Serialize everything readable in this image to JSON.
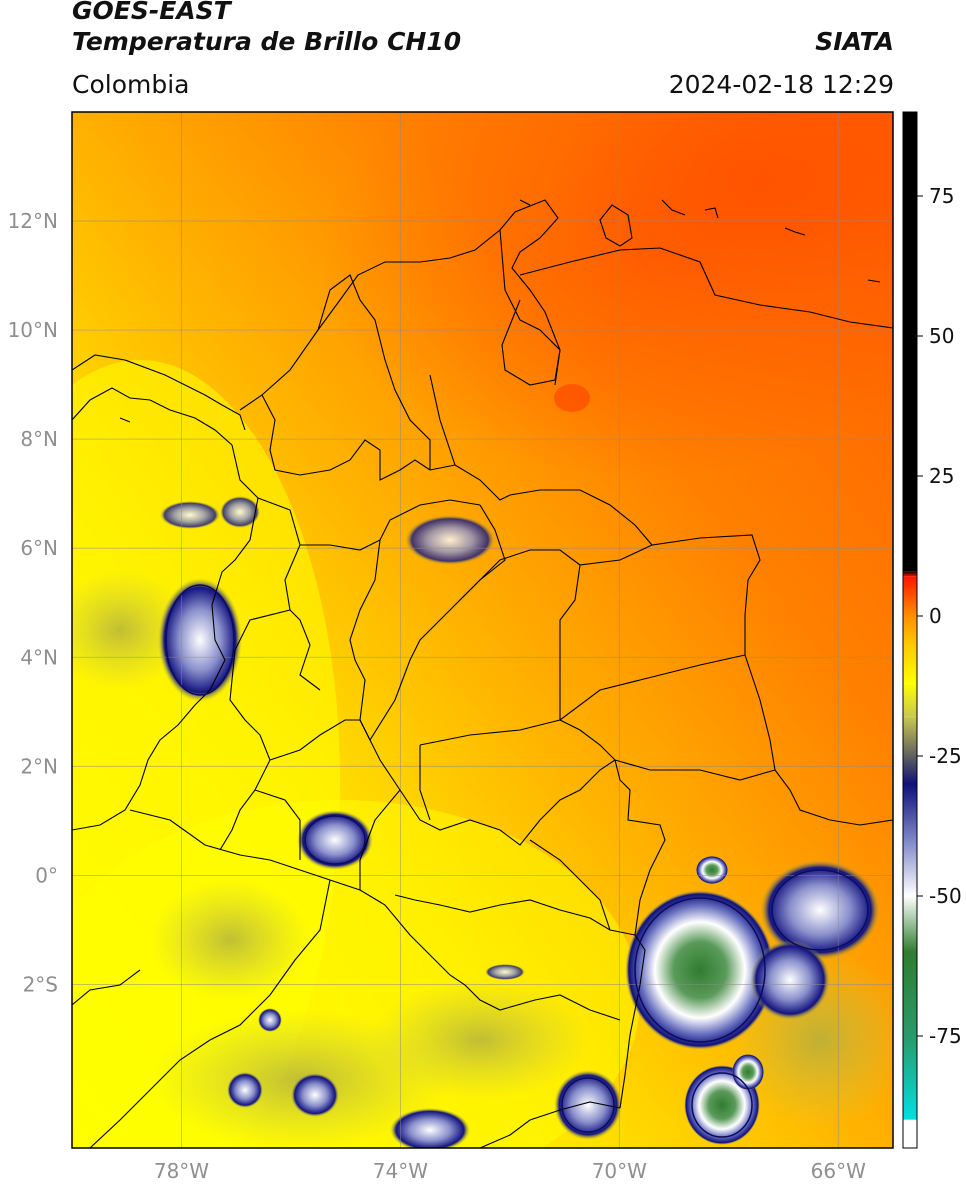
{
  "header": {
    "satellite": "GOES-EAST",
    "product": "Temperatura de Brillo CH10",
    "agency": "SIATA",
    "region": "Colombia",
    "timestamp": "2024-02-18 12:29"
  },
  "map": {
    "lon_range": [
      -80,
      -65
    ],
    "lat_range": [
      -5,
      14
    ],
    "lat_ticks": [
      {
        "value": 12,
        "label": "12°N"
      },
      {
        "value": 10,
        "label": "10°N"
      },
      {
        "value": 8,
        "label": "8°N"
      },
      {
        "value": 6,
        "label": "6°N"
      },
      {
        "value": 4,
        "label": "4°N"
      },
      {
        "value": 2,
        "label": "2°N"
      },
      {
        "value": 0,
        "label": "0°"
      },
      {
        "value": -2,
        "label": "2°S"
      }
    ],
    "lon_ticks": [
      {
        "value": -78,
        "label": "78°W"
      },
      {
        "value": -74,
        "label": "74°W"
      },
      {
        "value": -70,
        "label": "70°W"
      },
      {
        "value": -66,
        "label": "66°W"
      }
    ],
    "grid": true
  },
  "colorbar": {
    "range": [
      -95,
      90
    ],
    "ticks": [
      {
        "value": 75,
        "label": "75"
      },
      {
        "value": 50,
        "label": "50"
      },
      {
        "value": 25,
        "label": "25"
      },
      {
        "value": 0,
        "label": "0"
      },
      {
        "value": -25,
        "label": "-25"
      },
      {
        "value": -50,
        "label": "-50"
      },
      {
        "value": -75,
        "label": "-75"
      }
    ],
    "stops": [
      {
        "value": -95,
        "color": "#ffffff"
      },
      {
        "value": -90,
        "color": "#ffffff"
      },
      {
        "value": -89.9,
        "color": "#00e0e0"
      },
      {
        "value": -75,
        "color": "#2a9a6a"
      },
      {
        "value": -60,
        "color": "#2f7d2f"
      },
      {
        "value": -50,
        "color": "#ffffff"
      },
      {
        "value": -40,
        "color": "#7e86c8"
      },
      {
        "value": -30,
        "color": "#10107a"
      },
      {
        "value": -25,
        "color": "#606060"
      },
      {
        "value": -18,
        "color": "#c8c850"
      },
      {
        "value": -12,
        "color": "#ffff00"
      },
      {
        "value": -5,
        "color": "#ffc800"
      },
      {
        "value": 0,
        "color": "#ff9000"
      },
      {
        "value": 7,
        "color": "#ff1500"
      },
      {
        "value": 8,
        "color": "#000000"
      },
      {
        "value": 90,
        "color": "#000000"
      }
    ]
  }
}
